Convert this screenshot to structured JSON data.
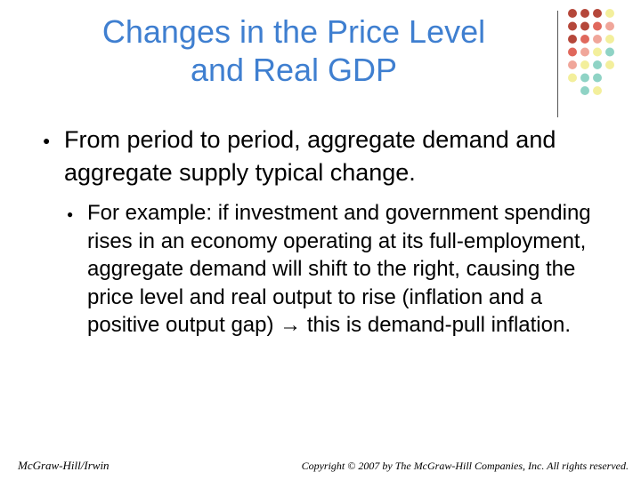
{
  "slide": {
    "title_line1": "Changes in the Price Level",
    "title_line2": "and Real GDP",
    "bullet_symbol": "●",
    "point1": "From period to period, aggregate demand and aggregate supply typical change.",
    "subpoint1_before_arrow": "For example: if investment and government spending rises in an economy operating at its full-employment, aggregate demand will shift to the right, causing the price level and real output to rise (inflation and a positive output gap)",
    "arrow_glyph": "→",
    "subpoint1_after_arrow": " this is demand-pull inflation."
  },
  "footer": {
    "publisher": "McGraw-Hill/Irwin",
    "copyright": "Copyright © 2007 by The McGraw-Hill Companies, Inc. All rights reserved."
  },
  "decoration": {
    "dot_colors": [
      "#b5473a",
      "#e0685c",
      "#f0a69a",
      "#f3ef9c",
      "#8fd3c5"
    ]
  }
}
